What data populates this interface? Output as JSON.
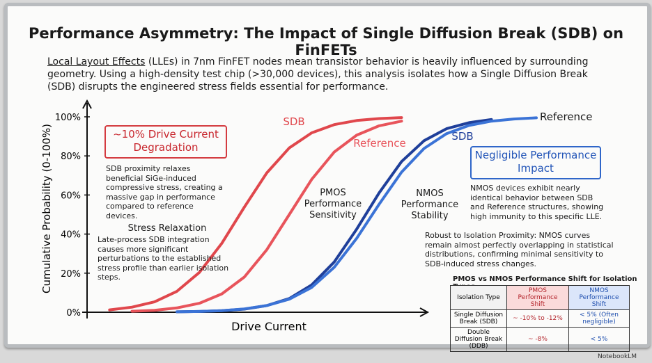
{
  "title": "Performance Asymmetry: The Impact of Single Diffusion Break (SDB) on FinFETs",
  "intro_term": "Local Layout Effects",
  "intro_text": "(LLEs) in 7nm FinFET nodes mean transistor behavior is heavily influenced by surrounding geometry. Using a high-density test chip (>30,000 devices), this analysis isolates how a Single Diffusion Break (SDB) disrupts the engineered stress fields essential for performance.",
  "notes": {
    "pmos_callout": "~10% Drive Current Degradation",
    "pmos_detail": "SDB proximity relaxes beneficial SiGe-induced compressive stress, creating a massive gap in performance compared to reference devices.",
    "stress_heading": "Stress Relaxation",
    "stress_detail": "Late-process SDB integration causes more significant perturbations to the established stress profile than earlier isolation steps.",
    "pmos_label": "PMOS Performance Sensitivity",
    "nmos_label": "NMOS Performance Stability",
    "nmos_callout": "Negligible Performance Impact",
    "nmos_detail": "NMOS devices exhibit nearly identical behavior between SDB and Reference structures, showing high immunity to this specific LLE.",
    "robust_detail": "Robust to Isolation Proximity: NMOS curves remain almost perfectly overlapping in statistical distributions, confirming minimal sensitivity to SDB-induced stress changes."
  },
  "table": {
    "title": "PMOS vs NMOS Performance Shift for Isolation Types",
    "header": [
      "Isolation Type",
      "PMOS Performance Shift",
      "NMOS Performance Shift"
    ],
    "rows": [
      [
        "Single Diffusion Break (SDB)",
        "~ -10% to -12%",
        "< 5% (Often negligible)"
      ],
      [
        "Double Diffusion Break (DDB)",
        "~ -8%",
        "< 5%"
      ]
    ]
  },
  "watermark": "NotebookLM",
  "chart_data": {
    "type": "line",
    "y_label": "Cumulative Probability (0-100%)",
    "x_label": "Drive Current",
    "x": [
      0,
      5,
      10,
      15,
      20,
      25,
      30,
      35,
      40,
      45,
      50,
      55,
      60,
      65,
      70,
      75,
      80,
      85,
      90,
      95,
      100
    ],
    "xlim": [
      0,
      100
    ],
    "ylim": [
      0,
      100
    ],
    "yticks": [
      {
        "value": 0,
        "label": "0%"
      },
      {
        "value": 20,
        "label": "20%"
      },
      {
        "value": 40,
        "label": "40%"
      },
      {
        "value": 60,
        "label": "60%"
      },
      {
        "value": 80,
        "label": "80%"
      },
      {
        "value": 100,
        "label": "100%"
      }
    ],
    "series": [
      {
        "name": "SDB",
        "color": "#e0474c",
        "values": [
          null,
          1.2,
          2.6,
          5.3,
          10.7,
          20.4,
          35.3,
          53.8,
          71.3,
          84.1,
          91.8,
          96.0,
          98.1,
          99.1,
          99.6,
          null,
          null,
          null,
          null,
          null,
          null
        ]
      },
      {
        "name": "Reference",
        "color": "#e8545b",
        "values": [
          null,
          null,
          0.5,
          1.0,
          2.2,
          4.6,
          9.4,
          18.0,
          32.0,
          50,
          68.0,
          82.0,
          90.6,
          95.4,
          97.8,
          null,
          null,
          null,
          null,
          null,
          null
        ]
      },
      {
        "name": "SDB",
        "color": "#1f3f9a",
        "values": [
          null,
          null,
          null,
          null,
          0.2,
          0.4,
          0.8,
          1.6,
          3.4,
          7.0,
          14.0,
          25.7,
          42.5,
          61.1,
          77.1,
          87.8,
          93.9,
          97.0,
          98.6,
          null,
          null
        ]
      },
      {
        "name": "Reference",
        "color": "#3b73d6",
        "values": [
          null,
          null,
          null,
          null,
          0.2,
          0.4,
          0.8,
          1.7,
          3.4,
          6.7,
          12.7,
          23.0,
          37.8,
          55.3,
          71.7,
          83.8,
          91.4,
          95.6,
          97.8,
          98.9,
          99.5
        ]
      }
    ]
  }
}
